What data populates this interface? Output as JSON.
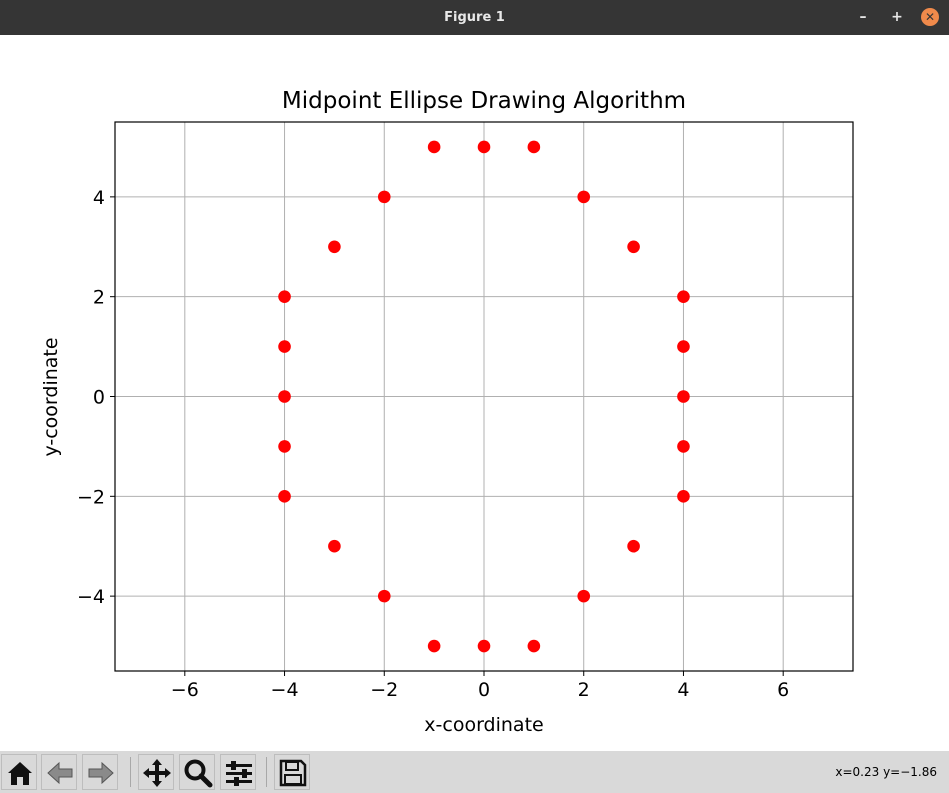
{
  "window": {
    "title": "Figure 1",
    "min_glyph": "–",
    "max_glyph": "+",
    "close_glyph": "✕"
  },
  "toolbar": {
    "buttons": [
      "home-icon",
      "back-icon",
      "forward-icon",
      "pan-icon",
      "zoom-icon",
      "configure-subplots-icon",
      "save-icon"
    ],
    "coords_text": "x=0.23 y=−1.86"
  },
  "chart_data": {
    "type": "scatter",
    "title": "Midpoint Ellipse Drawing Algorithm",
    "xlabel": "x-coordinate",
    "ylabel": "y-coordinate",
    "xlim": [
      -7.4,
      7.4
    ],
    "ylim": [
      -5.5,
      5.5
    ],
    "xticks": [
      -6,
      -4,
      -2,
      0,
      2,
      4,
      6
    ],
    "xtick_labels": [
      "−6",
      "−4",
      "−2",
      "0",
      "2",
      "4",
      "6"
    ],
    "yticks": [
      -4,
      -2,
      0,
      2,
      4
    ],
    "ytick_labels": [
      "−4",
      "−2",
      "0",
      "2",
      "4"
    ],
    "grid": true,
    "marker_color": "#ff0000",
    "points": [
      [
        0,
        5
      ],
      [
        1,
        5
      ],
      [
        -1,
        5
      ],
      [
        2,
        4
      ],
      [
        -2,
        4
      ],
      [
        3,
        3
      ],
      [
        -3,
        3
      ],
      [
        4,
        2
      ],
      [
        4,
        1
      ],
      [
        4,
        0
      ],
      [
        4,
        -1
      ],
      [
        4,
        -2
      ],
      [
        -4,
        2
      ],
      [
        -4,
        1
      ],
      [
        -4,
        0
      ],
      [
        -4,
        -1
      ],
      [
        -4,
        -2
      ],
      [
        3,
        -3
      ],
      [
        -3,
        -3
      ],
      [
        2,
        -4
      ],
      [
        -2,
        -4
      ],
      [
        0,
        -5
      ],
      [
        1,
        -5
      ],
      [
        -1,
        -5
      ]
    ]
  }
}
